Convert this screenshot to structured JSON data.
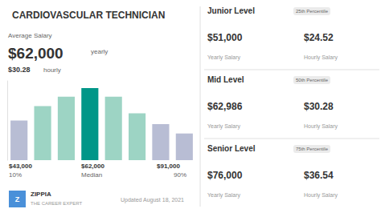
{
  "chart_data": {
    "type": "bar",
    "title": "CARDIOVASCULAR TECHNICIAN",
    "categories": [
      null,
      null,
      null,
      null,
      null,
      null,
      null,
      null
    ],
    "values": [
      0.55,
      0.75,
      0.88,
      1.0,
      0.88,
      0.65,
      0.5,
      0.37
    ],
    "colors": [
      "#b8bdd4",
      "#9dd4c4",
      "#9dd4c4",
      "#009688",
      "#9dd4c4",
      "#9dd4c4",
      "#b8bdd4",
      "#b8bdd4"
    ],
    "ylim": [
      0,
      1.1
    ],
    "grid": false,
    "tick_labels": false,
    "summary": {
      "label": "Average Salary",
      "yearly": "$62,000",
      "yearly_label": "yearly",
      "hourly": "$30.28",
      "hourly_label": "hourly"
    },
    "bar_labels": [
      {
        "amount": "$43,000",
        "sub": "10%"
      },
      {
        "amount": "$62,000",
        "sub": "Median"
      },
      {
        "amount": "$91,000",
        "sub": "90%"
      }
    ],
    "levels": [
      {
        "level": "Junior Level",
        "percentile": "25th Percentile",
        "yearly": "$51,000",
        "yearly_label": "Yearly Salary",
        "hourly": "$24.52",
        "hourly_label": "Hourly Salary"
      },
      {
        "level": "Mid Level",
        "percentile": "50th Percentile",
        "yearly": "$62,986",
        "yearly_label": "Yearly Salary",
        "hourly": "$30.28",
        "hourly_label": "Hourly Salary"
      },
      {
        "level": "Senior Level",
        "percentile": "75th Percentile",
        "yearly": "$76,000",
        "yearly_label": "Yearly Salary",
        "hourly": "$36.54",
        "hourly_label": "Hourly Salary"
      }
    ],
    "logo": {
      "mark": "Z",
      "name": "ZIPPIA",
      "tagline": "THE CAREER EXPERT",
      "color": "#4a90d9"
    },
    "footer": "Updated August 18, 2021"
  }
}
